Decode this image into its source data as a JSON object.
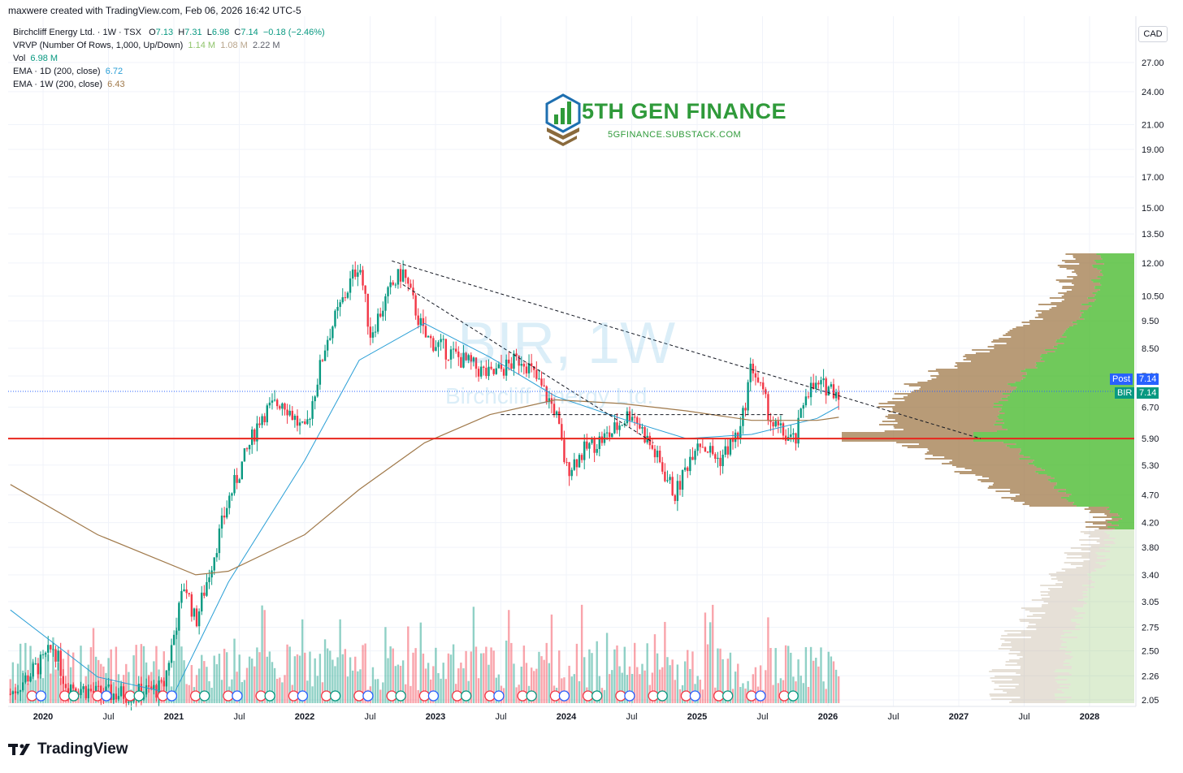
{
  "header": {
    "created_by": "maxwere created with TradingView.com, Feb 06, 2026 16:42 UTC-5"
  },
  "legend": {
    "symbol": "Birchcliff Energy Ltd. · 1W · TSX",
    "o_label": "O",
    "o_val": "7.13",
    "h_label": "H",
    "h_val": "7.31",
    "l_label": "L",
    "l_val": "6.98",
    "c_label": "C",
    "c_val": "7.14",
    "change": "−0.18 (−2.46%)",
    "vrvp_label": "VRVP (Number Of Rows, 1,000, Up/Down)",
    "vrvp_up": "1.14 M",
    "vrvp_down": "1.08 M",
    "vrvp_total": "2.22 M",
    "vol_label": "Vol",
    "vol_val": "6.98 M",
    "ema1_label": "EMA · 1D (200, close)",
    "ema1_val": "6.72",
    "ema2_label": "EMA · 1W (200, close)",
    "ema2_val": "6.43"
  },
  "currency": "CAD",
  "watermark": {
    "symbol": "BIR, 1W",
    "name": "Birchcliff Energy Ltd."
  },
  "brand": {
    "name": "5TH GEN FINANCE",
    "url": "5GFINANCE.SUBSTACK.COM"
  },
  "price_labels": {
    "post_label": "Post",
    "post_val": "7.14",
    "bir_label": "BIR",
    "bir_val": "7.14"
  },
  "footer": {
    "logo_text": "TradingView"
  },
  "colors": {
    "up": "#089981",
    "down": "#f23645",
    "ema1d": "#2a9fd6",
    "ema1w": "#a0794a",
    "support": "#e8271e"
  },
  "chart_data": {
    "type": "line",
    "title": "",
    "y_axis_scale": "log",
    "y_ticks": [
      "27.00",
      "24.00",
      "21.00",
      "19.00",
      "17.00",
      "15.00",
      "13.50",
      "12.00",
      "10.50",
      "9.50",
      "8.50",
      "7.60",
      "6.70",
      "5.90",
      "5.30",
      "4.70",
      "4.20",
      "3.80",
      "3.40",
      "3.05",
      "2.75",
      "2.50",
      "2.26",
      "2.05"
    ],
    "x_ticks": [
      "2020",
      "Jul",
      "2021",
      "Jul",
      "2022",
      "Jul",
      "2023",
      "Jul",
      "2024",
      "Jul",
      "2025",
      "Jul",
      "2026",
      "Jul",
      "2027",
      "Jul",
      "2028"
    ],
    "ylim": [
      2.05,
      27.0
    ],
    "xlim": [
      "2019-10",
      "2028-06"
    ],
    "series": [
      {
        "name": "Birchcliff Energy Ltd.",
        "x": [
          "2019-10",
          "2020-01",
          "2020-02",
          "2020-03",
          "2020-06",
          "2020-09",
          "2020-12",
          "2021-02",
          "2021-03",
          "2021-06",
          "2021-09",
          "2021-11",
          "2022-01",
          "2022-03",
          "2022-06",
          "2022-07",
          "2022-09",
          "2022-10",
          "2022-12",
          "2023-03",
          "2023-06",
          "2023-09",
          "2023-12",
          "2024-01",
          "2024-03",
          "2024-05",
          "2024-07",
          "2024-09",
          "2024-11",
          "2025-01",
          "2025-03",
          "2025-05",
          "2025-06",
          "2025-08",
          "2025-10",
          "2025-11",
          "2026-01",
          "2026-02"
        ],
        "values": [
          2.1,
          2.4,
          2.55,
          2.2,
          2.1,
          2.1,
          2.15,
          3.3,
          2.8,
          4.6,
          6.5,
          6.9,
          6.0,
          8.8,
          12.1,
          9.0,
          10.9,
          11.6,
          8.9,
          8.2,
          7.6,
          8.2,
          6.6,
          5.2,
          5.7,
          6.0,
          6.6,
          5.6,
          4.7,
          5.9,
          5.4,
          6.1,
          8.0,
          6.2,
          5.8,
          7.2,
          7.3,
          7.14
        ]
      },
      {
        "name": "EMA · 1D (200, close)",
        "x": [
          "2019-10",
          "2020-06",
          "2021-01",
          "2021-06",
          "2022-01",
          "2022-06",
          "2022-12",
          "2023-06",
          "2023-12",
          "2024-06",
          "2024-12",
          "2025-06",
          "2025-12",
          "2026-02"
        ],
        "values": [
          2.95,
          2.25,
          2.1,
          3.3,
          5.4,
          8.1,
          9.4,
          8.2,
          7.0,
          6.4,
          5.9,
          6.0,
          6.4,
          6.72
        ]
      },
      {
        "name": "EMA · 1W (200, close)",
        "x": [
          "2019-10",
          "2020-06",
          "2021-03",
          "2021-06",
          "2022-01",
          "2022-06",
          "2022-12",
          "2023-06",
          "2023-12",
          "2024-06",
          "2024-12",
          "2025-06",
          "2025-12",
          "2026-02"
        ],
        "values": [
          4.9,
          4.0,
          3.4,
          3.45,
          4.0,
          4.8,
          5.8,
          6.5,
          6.9,
          6.8,
          6.6,
          6.35,
          6.35,
          6.43
        ]
      }
    ],
    "annotations": [
      {
        "type": "horizontal-line",
        "value": 5.9
      },
      {
        "type": "trendline-dashed",
        "from": [
          "2022-09",
          12.1
        ],
        "to": [
          "2027-03",
          5.9
        ]
      },
      {
        "type": "trendline-dashed",
        "from": [
          "2022-10",
          11.0
        ],
        "to": [
          "2024-09",
          5.8
        ]
      },
      {
        "type": "support-dashed",
        "value": 6.5,
        "from": "2023-07",
        "to": "2025-09"
      }
    ]
  }
}
